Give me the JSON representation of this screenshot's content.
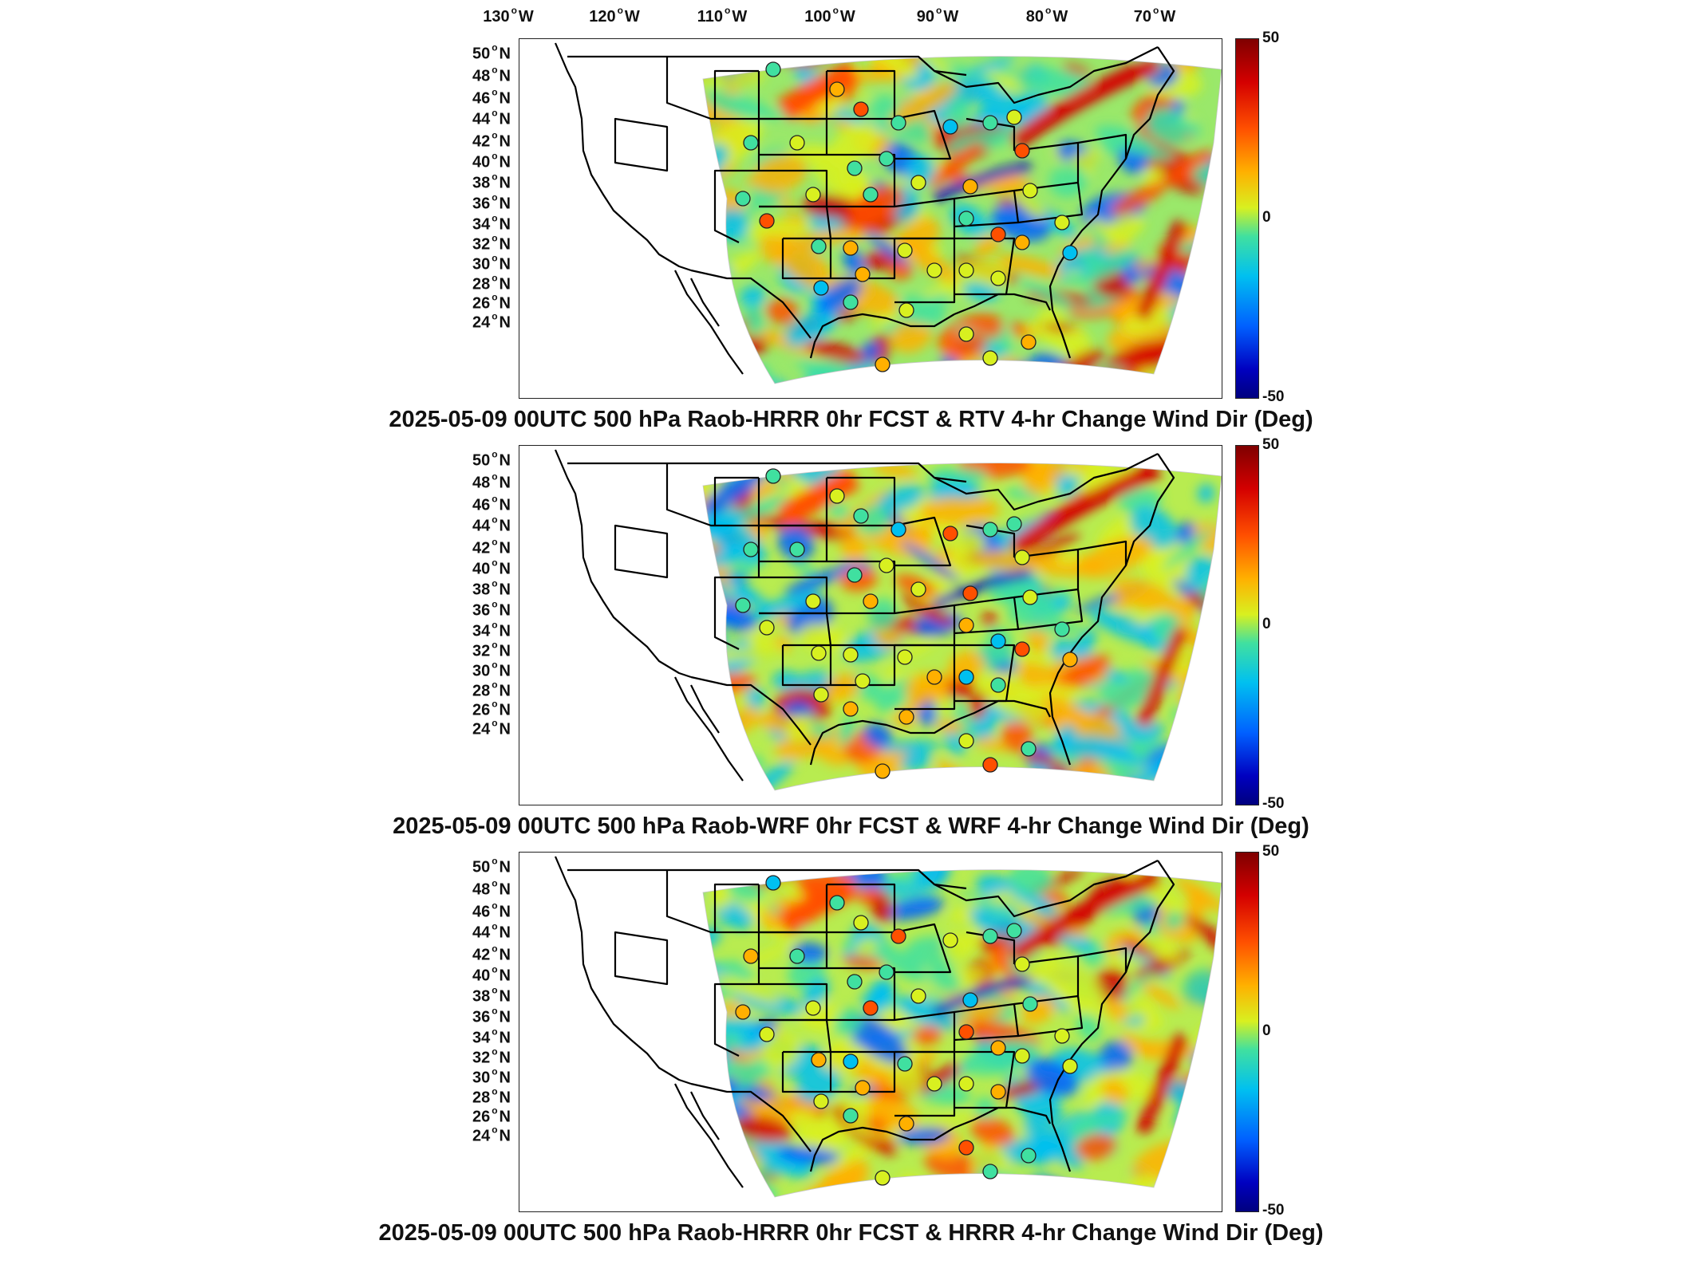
{
  "longitude_labels": [
    {
      "deg": "130",
      "dir": "W"
    },
    {
      "deg": "120",
      "dir": "W"
    },
    {
      "deg": "110",
      "dir": "W"
    },
    {
      "deg": "100",
      "dir": "W"
    },
    {
      "deg": "90",
      "dir": "W"
    },
    {
      "deg": "80",
      "dir": "W"
    },
    {
      "deg": "70",
      "dir": "W"
    }
  ],
  "latitude_labels": [
    {
      "deg": "50",
      "dir": "N"
    },
    {
      "deg": "48",
      "dir": "N"
    },
    {
      "deg": "46",
      "dir": "N"
    },
    {
      "deg": "44",
      "dir": "N"
    },
    {
      "deg": "42",
      "dir": "N"
    },
    {
      "deg": "40",
      "dir": "N"
    },
    {
      "deg": "38",
      "dir": "N"
    },
    {
      "deg": "36",
      "dir": "N"
    },
    {
      "deg": "34",
      "dir": "N"
    },
    {
      "deg": "32",
      "dir": "N"
    },
    {
      "deg": "30",
      "dir": "N"
    },
    {
      "deg": "28",
      "dir": "N"
    },
    {
      "deg": "26",
      "dir": "N"
    },
    {
      "deg": "24",
      "dir": "N"
    }
  ],
  "colorbar": {
    "max_label": "50",
    "mid_label": "0",
    "min_label": "-50",
    "colormap": "jet",
    "colors": [
      "#7f0000",
      "#d40000",
      "#ff5000",
      "#ffb000",
      "#d8f020",
      "#40e0a0",
      "#00c0f0",
      "#0060ff",
      "#0000c0",
      "#00007f"
    ]
  },
  "panels": [
    {
      "title": "2025-05-09 00UTC 500 hPa Raob-HRRR 0hr FCST & RTV 4-hr Change Wind Dir (Deg)"
    },
    {
      "title": "2025-05-09 00UTC 500 hPa Raob-WRF 0hr FCST & WRF 4-hr Change Wind Dir (Deg)"
    },
    {
      "title": "2025-05-09 00UTC 500 hPa Raob-HRRR 0hr FCST & HRRR 4-hr Change Wind Dir (Deg)"
    }
  ],
  "map": {
    "region": "Contiguous United States",
    "features": [
      "state boundaries",
      "coastlines",
      "raob station circles",
      "shaded field"
    ]
  }
}
